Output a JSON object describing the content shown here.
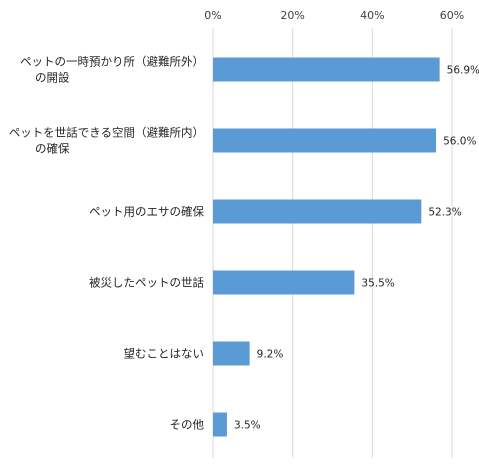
{
  "chart_data": {
    "type": "bar",
    "orientation": "horizontal",
    "categories": [
      [
        "ペットの一時預かり所（避難所外）",
        "の開設"
      ],
      [
        "ペットを世話できる空間（避難所内）",
        "の確保"
      ],
      [
        "ペット用のエサの確保"
      ],
      [
        "被災したペットの世話"
      ],
      [
        "望むことはない"
      ],
      [
        "その他"
      ]
    ],
    "values": [
      56.9,
      56.0,
      52.3,
      35.5,
      9.2,
      3.5
    ],
    "value_labels": [
      "56.9%",
      "56.0%",
      "52.3%",
      "35.5%",
      "9.2%",
      "3.5%"
    ],
    "xlim": [
      0,
      60
    ],
    "ticks": [
      0,
      20,
      40,
      60
    ],
    "tick_labels": [
      "0%",
      "20%",
      "40%",
      "60%"
    ],
    "grid": true,
    "axis_position": "top",
    "color": "#5b9bd5"
  }
}
